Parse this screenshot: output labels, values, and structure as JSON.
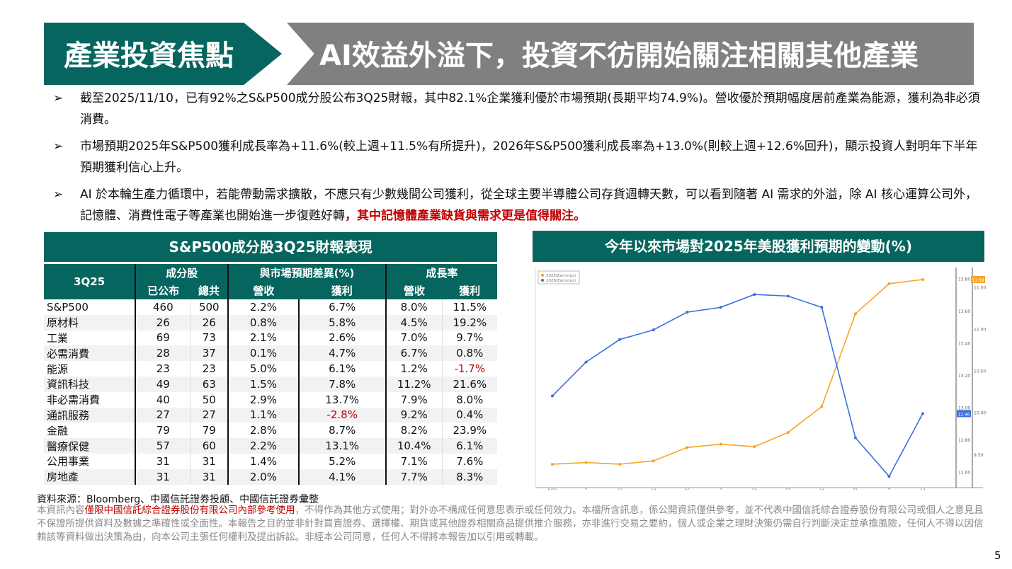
{
  "header": {
    "section": "產業投資焦點",
    "title": "AI效益外溢下，投資不彷開始關注相關其他產業"
  },
  "bullets": [
    {
      "text": "截至2025/11/10，已有92%之S&P500成分股公布3Q25財報，其中82.1%企業獲利優於市場預期(長期平均74.9%)。營收優於預期幅度居前產業為能源，獲利為非必須消費。",
      "highlight": ""
    },
    {
      "text": "市場預期2025年S&P500獲利成長率為+11.6%(較上週+11.5%有所提升)，2026年S&P500獲利成長率為+13.0%(則較上週+12.6%回升)，顯示投資人對明年下半年預期獲利信心上升。",
      "highlight": ""
    },
    {
      "text": "AI 於本輪生產力循環中，若能帶動需求擴散，不應只有少數幾間公司獲利，從全球主要半導體公司存貨週轉天數，可以看到隨著 AI 需求的外溢，除 AI 核心運算公司外，記憶體、消費性電子等產業也開始進一步復甦好轉",
      "highlight": "，其中記憶體產業缺貨與需求更是值得關注。"
    }
  ],
  "table": {
    "title": "S&P500成分股3Q25財報表現",
    "corner": "3Q25",
    "groups": [
      "成分股",
      "與市場預期差異(%)",
      "成長率"
    ],
    "subheaders": [
      "已公布",
      "總共",
      "營收",
      "獲利",
      "營收",
      "獲利"
    ],
    "rows": [
      [
        "S&P500",
        "460",
        "500",
        "2.2%",
        "6.7%",
        "8.0%",
        "11.5%"
      ],
      [
        "原材料",
        "26",
        "26",
        "0.8%",
        "5.8%",
        "4.5%",
        "19.2%"
      ],
      [
        "工業",
        "69",
        "73",
        "2.1%",
        "2.6%",
        "7.0%",
        "9.7%"
      ],
      [
        "必需消費",
        "28",
        "37",
        "0.1%",
        "4.7%",
        "6.7%",
        "0.8%"
      ],
      [
        "能源",
        "23",
        "23",
        "5.0%",
        "6.1%",
        "1.2%",
        "-1.7%"
      ],
      [
        "資訊科技",
        "49",
        "63",
        "1.5%",
        "7.8%",
        "11.2%",
        "21.6%"
      ],
      [
        "非必需消費",
        "40",
        "50",
        "2.9%",
        "13.7%",
        "7.9%",
        "8.0%"
      ],
      [
        "通訊服務",
        "27",
        "27",
        "1.1%",
        "-2.8%",
        "9.2%",
        "0.4%"
      ],
      [
        "金融",
        "79",
        "79",
        "2.8%",
        "8.7%",
        "8.2%",
        "23.9%"
      ],
      [
        "醫療保健",
        "57",
        "60",
        "2.2%",
        "13.1%",
        "10.4%",
        "6.1%"
      ],
      [
        "公用事業",
        "31",
        "31",
        "1.4%",
        "5.2%",
        "7.1%",
        "7.6%"
      ],
      [
        "房地產",
        "31",
        "31",
        "2.0%",
        "4.1%",
        "7.7%",
        "8.3%"
      ]
    ]
  },
  "chart_data": {
    "type": "line",
    "title": "今年以來市場對2025年美股獲利預期的變動(%)",
    "x": [
      "8/29",
      "5",
      "12",
      "19",
      "26",
      "3",
      "10",
      "17",
      "24",
      "31",
      "7",
      "14"
    ],
    "series": [
      {
        "name": "2025(Earnings)",
        "color": "#f5a623",
        "axis": "right",
        "values": [
          9.38,
          9.4,
          9.38,
          9.42,
          9.58,
          9.62,
          9.59,
          9.76,
          10.07,
          11.18,
          11.54,
          11.59
        ],
        "last_label": "11.59"
      },
      {
        "name": "2026(Earnings)",
        "color": "#3b6fe0",
        "axis": "left",
        "values": [
          13.07,
          13.28,
          13.42,
          13.48,
          13.59,
          13.62,
          13.7,
          13.69,
          13.62,
          12.81,
          12.57,
          12.96
        ],
        "last_label": "12.96"
      }
    ],
    "left_axis": {
      "ticks": [
        "13.80",
        "13.60",
        "13.40",
        "13.20",
        "13.00",
        "12.80",
        "12.60"
      ],
      "range": [
        12.5,
        13.85
      ]
    },
    "right_axis": {
      "ticks": [
        "11.50",
        "11.00",
        "10.50",
        "10.00",
        "9.50"
      ],
      "range": [
        9.1,
        11.7
      ]
    },
    "legend": "top-left"
  },
  "footer": {
    "source": "資料來源：Bloomberg、中國信託證券投顧、中國信託證券彙整",
    "disc_pre": "本資訊內容",
    "disc_red": "僅限中國信託綜合證券股份有限公司內部參考使用",
    "disc_post": "，不得作為其他方式使用；對外亦不構成任何意思表示或任何效力。本檔所含訊息，係公開資訊僅供參考，並不代表中國信託綜合證券股份有限公司或個人之意見且不保證所提供資料及數據之準確性或全面性。本報告之目的並非針對買賣證券、選擇權、期貨或其他證券相關商品提供推介服務，亦非進行交易之要約，個人或企業之理財決策仍需自行判斷決定並承擔風險，任何人不得以因信賴該等資料做出決策為由，向本公司主張任何權利及提出訴訟。非經本公司同意，任何人不得將本報告加以引用或轉載。",
    "page": "5"
  }
}
